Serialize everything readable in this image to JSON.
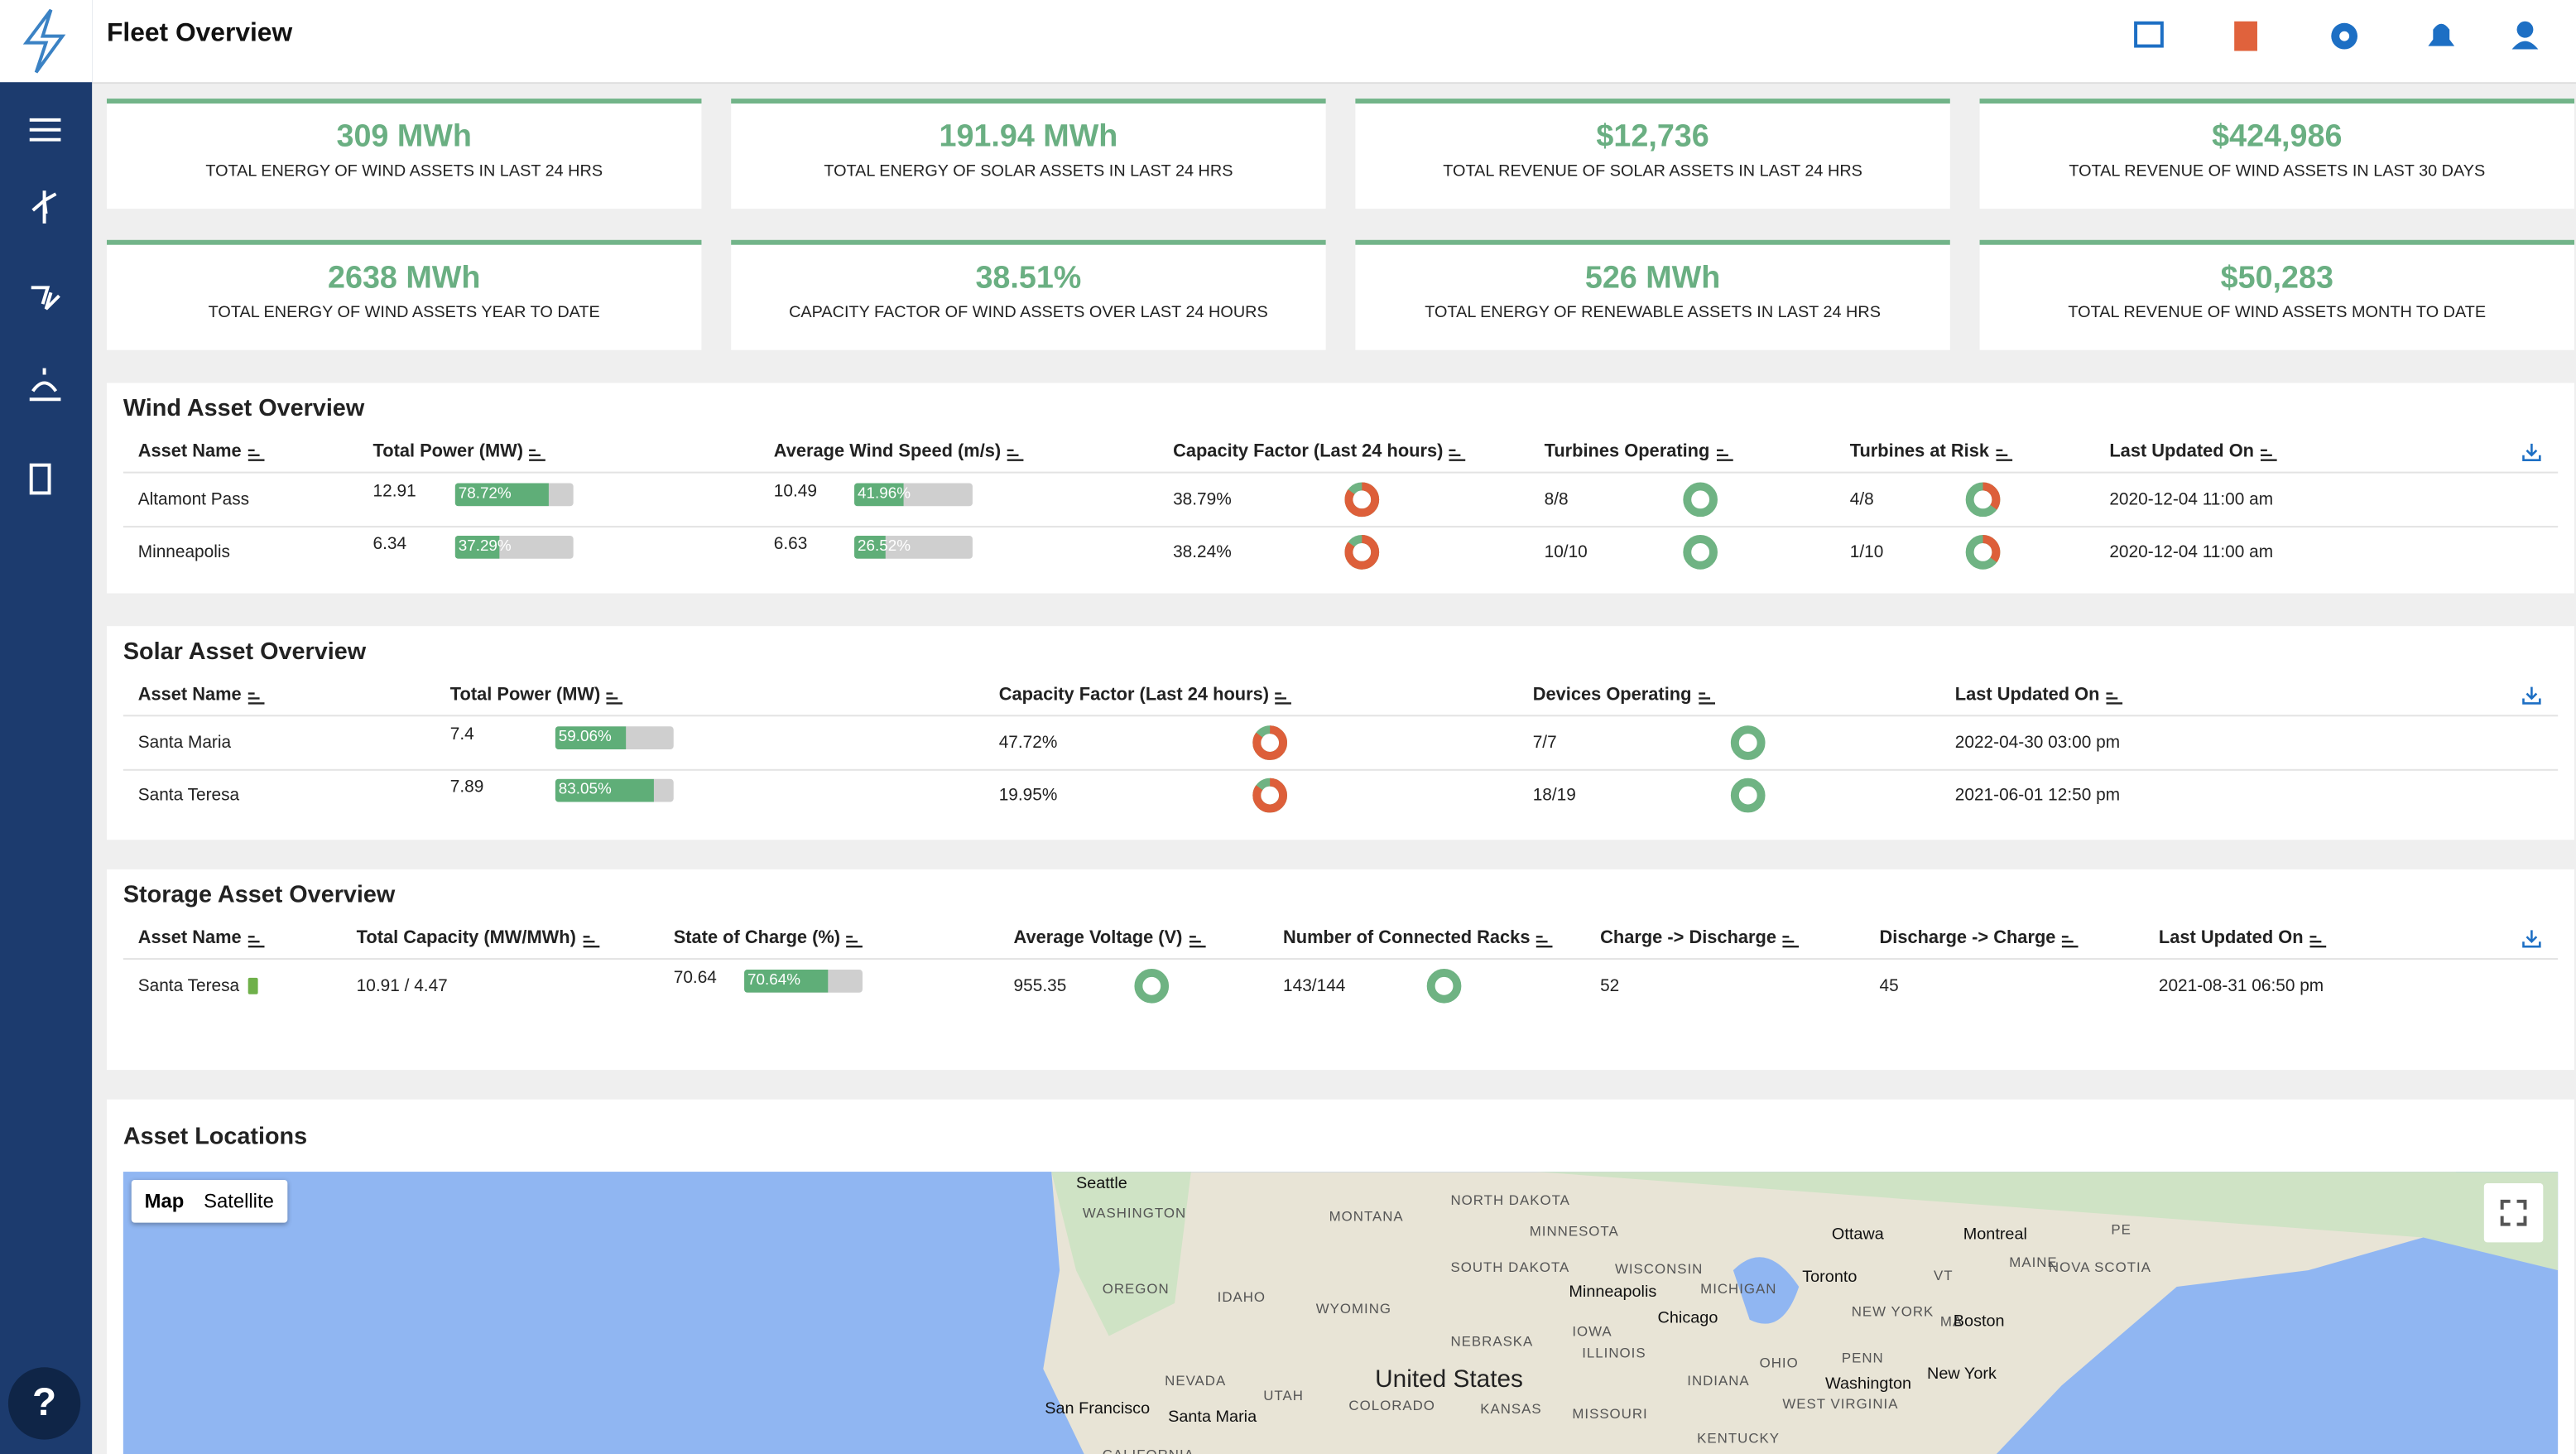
{
  "header": {
    "title": "Fleet Overview"
  },
  "kpis": [
    {
      "value": "309 MWh",
      "label": "TOTAL ENERGY OF WIND ASSETS IN LAST 24 HRS"
    },
    {
      "value": "191.94 MWh",
      "label": "TOTAL ENERGY OF SOLAR ASSETS IN LAST 24 HRS"
    },
    {
      "value": "$12,736",
      "label": "TOTAL REVENUE OF SOLAR ASSETS IN LAST 24 HRS"
    },
    {
      "value": "$424,986",
      "label": "TOTAL REVENUE OF WIND ASSETS IN LAST 30 DAYS"
    },
    {
      "value": "2638 MWh",
      "label": "TOTAL ENERGY OF WIND ASSETS YEAR TO DATE"
    },
    {
      "value": "38.51%",
      "label": "CAPACITY FACTOR OF WIND ASSETS OVER LAST 24 HOURS"
    },
    {
      "value": "526 MWh",
      "label": "TOTAL ENERGY OF RENEWABLE ASSETS IN LAST 24 HRS"
    },
    {
      "value": "$50,283",
      "label": "TOTAL REVENUE OF WIND ASSETS MONTH TO DATE"
    }
  ],
  "wind": {
    "title": "Wind Asset Overview",
    "columns": [
      "Asset Name",
      "Total Power (MW)",
      "Average Wind Speed (m/s)",
      "Capacity Factor (Last 24 hours)",
      "Turbines Operating",
      "Turbines at Risk",
      "Last Updated On"
    ],
    "rows": [
      [
        {
          "text": "Altamont Pass"
        },
        {
          "text": "12.91",
          "pct": 78.72,
          "pct_label": "78.72%"
        },
        {
          "text": "10.49",
          "pct": 41.96,
          "pct_label": "41.96%"
        },
        {
          "text": "38.79%"
        },
        {
          "text": "8/8"
        },
        {
          "text": "4/8"
        },
        {
          "text": "2020-12-04 11:00 am"
        }
      ],
      [
        {
          "text": "Minneapolis"
        },
        {
          "text": "6.34",
          "pct": 37.29,
          "pct_label": "37.29%"
        },
        {
          "text": "6.63",
          "pct": 26.52,
          "pct_label": "26.52%"
        },
        {
          "text": "38.24%"
        },
        {
          "text": "10/10"
        },
        {
          "text": "1/10"
        },
        {
          "text": "2020-12-04 11:00 am"
        }
      ]
    ]
  },
  "solar": {
    "title": "Solar Asset Overview",
    "columns": [
      "Asset Name",
      "Total Power (MW)",
      "Capacity Factor (Last 24 hours)",
      "Devices Operating",
      "Last Updated On"
    ],
    "rows": [
      [
        {
          "text": "Santa Maria"
        },
        {
          "text": "7.4",
          "pct": 59.06,
          "pct_label": "59.06%"
        },
        {
          "text": "47.72%"
        },
        {
          "text": "7/7"
        },
        {
          "text": "2022-04-30 03:00 pm"
        }
      ],
      [
        {
          "text": "Santa Teresa"
        },
        {
          "text": "7.89",
          "pct": 83.05,
          "pct_label": "83.05%"
        },
        {
          "text": "19.95%"
        },
        {
          "text": "18/19"
        },
        {
          "text": "2021-06-01 12:50 pm"
        }
      ]
    ]
  },
  "storage": {
    "title": "Storage Asset Overview",
    "columns": [
      "Asset Name",
      "Total Capacity (MW/MWh)",
      "State of Charge (%)",
      "Average Voltage (V)",
      "Number of Connected Racks",
      "Charge -> Discharge",
      "Discharge -> Charge",
      "Last Updated On"
    ],
    "rows": [
      [
        {
          "text": "Santa Teresa"
        },
        {
          "text": "10.91 / 4.47"
        },
        {
          "text": "70.64",
          "pct": 70.64,
          "pct_label": "70.64%"
        },
        {
          "text": "955.35"
        },
        {
          "text": "143/144"
        },
        {
          "text": "52"
        },
        {
          "text": "45"
        },
        {
          "text": "2021-08-31 06:50 pm"
        }
      ]
    ]
  },
  "map": {
    "title": "Asset Locations",
    "tabs": [
      "Map",
      "Satellite"
    ],
    "labels": [
      "Seattle",
      "WASHINGTON",
      "MONTANA",
      "NORTH DAKOTA",
      "MINNESOTA",
      "Ottawa",
      "Montreal",
      "PE",
      "OREGON",
      "IDAHO",
      "SOUTH DAKOTA",
      "WISCONSIN",
      "Minneapolis",
      "MICHIGAN",
      "Toronto",
      "VT",
      "MAINE",
      "NOVA SCOTIA",
      "WYOMING",
      "NEW YORK",
      "MA",
      "Boston",
      "IOWA",
      "Chicago",
      "NEBRASKA",
      "PENN",
      "United States",
      "NEVADA",
      "UTAH",
      "COLORADO",
      "KANSAS",
      "ILLINOIS",
      "INDIANA",
      "OHIO",
      "Washington",
      "New York",
      "San Francisco",
      "Santa Maria",
      "MISSOURI",
      "WEST VIRGINIA",
      "KENTUCKY",
      "CALIFORNIA"
    ]
  }
}
